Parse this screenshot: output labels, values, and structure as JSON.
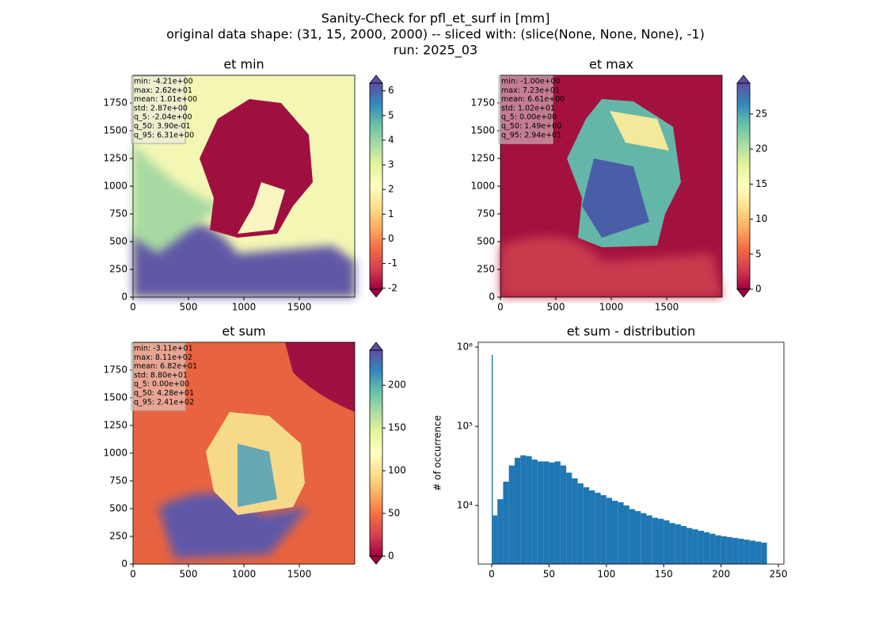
{
  "figure": {
    "title_lines": [
      "Sanity-Check for pfl_et_surf in [mm]",
      "original data shape: (31, 15, 2000, 2000) -- sliced with: (slice(None, None, None), -1)",
      "run: 2025_03"
    ]
  },
  "chart_data": [
    {
      "type": "heatmap",
      "title": "et min",
      "stats": [
        "min: -4.21e+00",
        "max: 2.62e+01",
        "mean: 1.01e+00",
        "std: 2.87e+00",
        "q_5: -2.04e+00",
        "q_50: 3.90e-01",
        "q_95: 6.31e+00"
      ],
      "xlim": [
        0,
        2000
      ],
      "ylim": [
        0,
        2000
      ],
      "xticks": [
        0,
        500,
        1000,
        1500
      ],
      "yticks": [
        0,
        250,
        500,
        750,
        1000,
        1250,
        1500,
        1750
      ],
      "colorbar_lim": [
        -2.04,
        6.31
      ],
      "colorbar_ticks": [
        -2,
        -1,
        0,
        1,
        2,
        3,
        4,
        5,
        6
      ],
      "colormap": "Spectral"
    },
    {
      "type": "heatmap",
      "title": "et max",
      "stats": [
        "min: -1.00e+00",
        "max: 7.23e+01",
        "mean: 6.61e+00",
        "std: 1.02e+01",
        "q_5: 0.00e+00",
        "q_50: 1.49e+00",
        "q_95: 2.94e+01"
      ],
      "xlim": [
        0,
        2000
      ],
      "ylim": [
        0,
        2000
      ],
      "xticks": [
        0,
        500,
        1000,
        1500
      ],
      "yticks": [
        0,
        250,
        500,
        750,
        1000,
        1250,
        1500,
        1750
      ],
      "colorbar_lim": [
        0,
        29.4
      ],
      "colorbar_ticks": [
        0,
        5,
        10,
        15,
        20,
        25
      ],
      "colormap": "Spectral"
    },
    {
      "type": "heatmap",
      "title": "et sum",
      "stats": [
        "min: -3.11e+01",
        "max: 8.11e+02",
        "mean: 6.82e+01",
        "std: 8.80e+01",
        "q_5: 0.00e+00",
        "q_50: 4.28e+01",
        "q_95: 2.41e+02"
      ],
      "xlim": [
        0,
        2000
      ],
      "ylim": [
        0,
        2000
      ],
      "xticks": [
        0,
        500,
        1000,
        1500
      ],
      "yticks": [
        0,
        250,
        500,
        750,
        1000,
        1250,
        1500,
        1750
      ],
      "colorbar_lim": [
        0,
        241
      ],
      "colorbar_ticks": [
        0,
        50,
        100,
        150,
        200
      ],
      "colormap": "Spectral"
    },
    {
      "type": "histogram",
      "title": "et sum - distribution",
      "y_label": "# of occurrence",
      "color": "#1f77b4",
      "log_y": true,
      "bins": [
        0,
        1,
        5,
        10,
        15,
        20,
        25,
        30,
        35,
        40,
        45,
        50,
        55,
        60,
        65,
        70,
        75,
        80,
        85,
        90,
        95,
        100,
        105,
        110,
        115,
        120,
        125,
        130,
        135,
        140,
        145,
        150,
        155,
        160,
        165,
        170,
        175,
        180,
        185,
        190,
        195,
        200,
        205,
        210,
        215,
        220,
        225,
        230,
        235,
        240
      ],
      "counts": [
        800000,
        7500,
        12000,
        20000,
        32000,
        40000,
        43000,
        42000,
        38000,
        36000,
        36000,
        35000,
        36000,
        32000,
        26000,
        22000,
        19000,
        17000,
        15500,
        14500,
        13500,
        12500,
        11500,
        11000,
        10000,
        9000,
        8500,
        8000,
        7500,
        7000,
        6800,
        6500,
        6000,
        5800,
        5500,
        5200,
        5000,
        4800,
        4600,
        4400,
        4200,
        4100,
        4000,
        3900,
        3800,
        3700,
        3600,
        3500,
        3400
      ],
      "xlim": [
        -11.7,
        254.8
      ],
      "ylim": [
        1820,
        1150000
      ],
      "xticks": [
        0,
        50,
        100,
        150,
        200,
        250
      ],
      "yticks": [
        {
          "value": 10000,
          "label": "10⁴"
        },
        {
          "value": 100000,
          "label": "10⁵"
        },
        {
          "value": 1000000,
          "label": "10⁶"
        }
      ]
    }
  ]
}
